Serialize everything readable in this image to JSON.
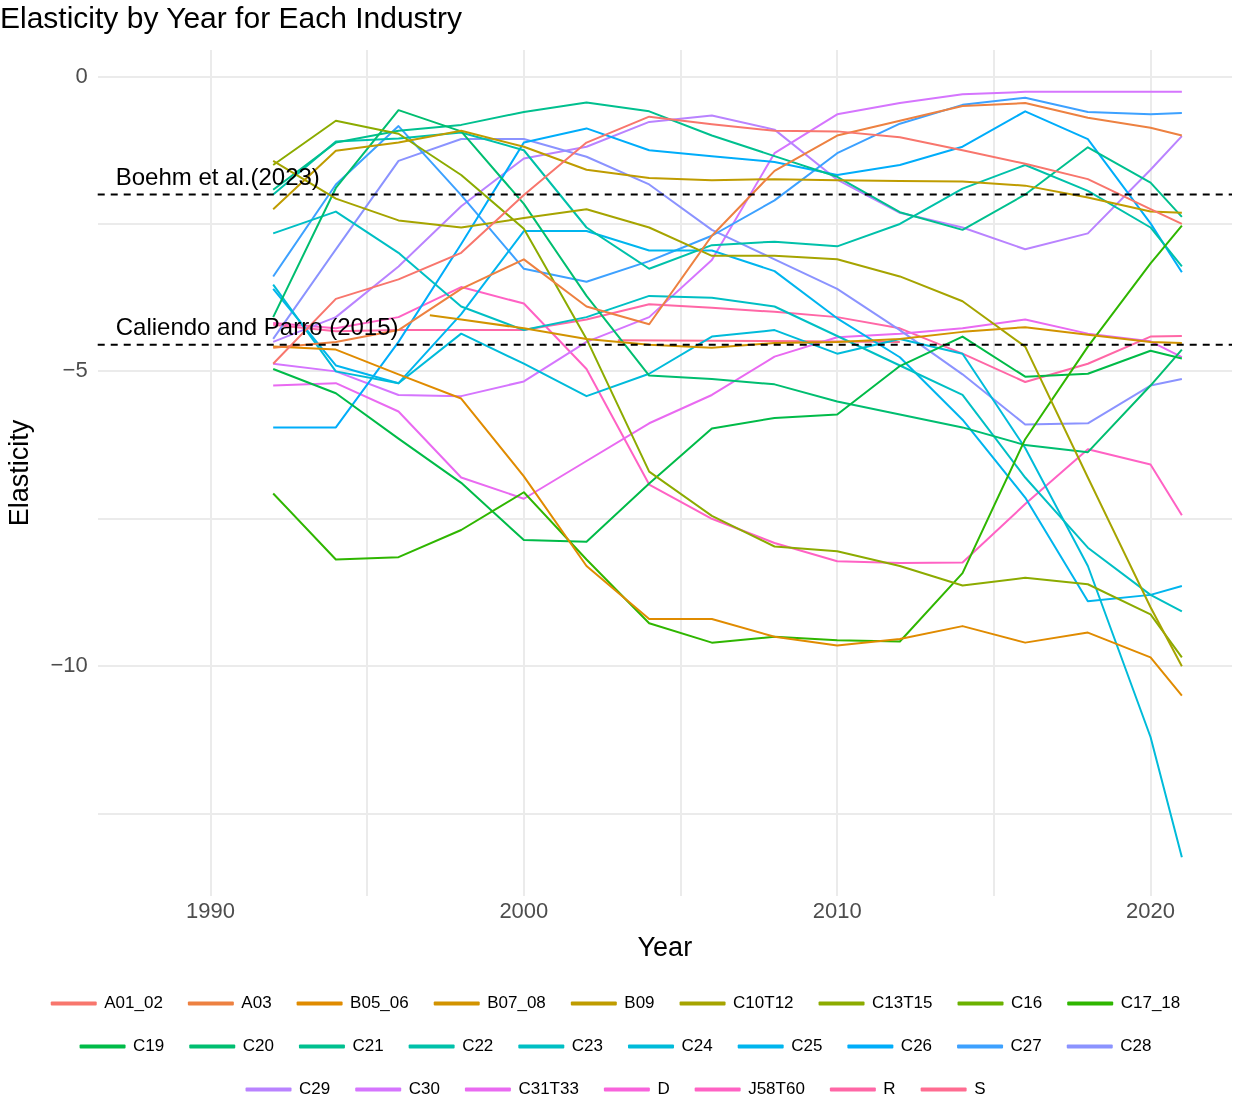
{
  "chart_data": {
    "type": "line",
    "title": "Elasticity by Year for Each Industry",
    "xlabel": "Year",
    "ylabel": "Elasticity",
    "legend": "bottom",
    "grid": true,
    "marker": "none",
    "line_style": "solid",
    "xlim": [
      1986.4,
      2022.6
    ],
    "xticks": [
      1990,
      {
        "value": 1995,
        "label": null
      },
      2000,
      {
        "value": 2005,
        "label": null
      },
      2010,
      {
        "value": 2015,
        "label": null
      },
      2020
    ],
    "ylim": [
      -13.9,
      0.45
    ],
    "yticks": [
      {
        "value": -12.5,
        "label": null
      },
      {
        "value": -10,
        "label": "−10"
      },
      {
        "value": -7.5,
        "label": null
      },
      {
        "value": -5,
        "label": "−5"
      },
      {
        "value": -2.5,
        "label": null
      },
      0
    ],
    "x": [
      1992,
      1994,
      1996,
      1998,
      2000,
      2002,
      2004,
      2006,
      2008,
      2010,
      2012,
      2014,
      2016,
      2018,
      2020,
      2021
    ],
    "ref_lines": [
      {
        "axis": "y",
        "value": -2,
        "label": "Boehm et al.(2023)",
        "color": "#000000",
        "line_style": "dashed"
      },
      {
        "axis": "y",
        "value": -4.55,
        "label": "Caliendo and Parro (2015)",
        "color": "#000000",
        "line_style": "dashed"
      }
    ],
    "series": [
      {
        "name": "A01_02",
        "color": "#f8766d",
        "values": [
          -4.87,
          -3.77,
          -3.44,
          -2.99,
          -2.01,
          -1.12,
          -0.68,
          -0.81,
          -0.92,
          -0.93,
          -1.03,
          -1.25,
          -1.48,
          -1.74,
          -2.25,
          -2.5
        ]
      },
      {
        "name": "A03",
        "color": "#ed8141",
        "values": [
          -4.6,
          -4.5,
          -4.3,
          -3.6,
          -3.1,
          -3.9,
          -4.2,
          -2.7,
          -1.6,
          -1.0,
          -0.75,
          -0.5,
          -0.45,
          -0.7,
          -0.87,
          -1.0
        ]
      },
      {
        "name": "B05_06",
        "color": "#e08b00",
        "values": [
          -4.58,
          -4.63,
          -5.05,
          -5.46,
          -6.78,
          -8.3,
          -9.2,
          -9.2,
          -9.5,
          -9.65,
          -9.54,
          -9.32,
          -9.6,
          -9.43,
          -9.85,
          -10.5
        ]
      },
      {
        "name": "B07_08",
        "color": "#d29300",
        "x": [
          1997,
          1998,
          2000,
          2002,
          2004,
          2006,
          2008,
          2010,
          2012,
          2014,
          2016,
          2018,
          2020,
          2021
        ],
        "values": [
          -4.05,
          -4.12,
          -4.27,
          -4.45,
          -4.55,
          -4.6,
          -4.52,
          -4.5,
          -4.45,
          -4.33,
          -4.25,
          -4.38,
          -4.5,
          -4.52
        ]
      },
      {
        "name": "B09",
        "color": "#bf9c00",
        "values": [
          -2.25,
          -1.26,
          -1.12,
          -0.92,
          -1.19,
          -1.58,
          -1.72,
          -1.76,
          -1.74,
          -1.76,
          -1.77,
          -1.78,
          -1.85,
          -2.05,
          -2.29,
          -2.31
        ]
      },
      {
        "name": "C10T12",
        "color": "#a6a400",
        "values": [
          -1.43,
          -2.07,
          -2.44,
          -2.56,
          -2.4,
          -2.25,
          -2.56,
          -3.04,
          -3.04,
          -3.1,
          -3.39,
          -3.81,
          -4.58,
          -6.8,
          -9.0,
          -10.0
        ]
      },
      {
        "name": "C13T15",
        "color": "#8cab00",
        "values": [
          -1.5,
          -0.75,
          -0.97,
          -1.67,
          -2.58,
          -4.45,
          -6.7,
          -7.45,
          -7.97,
          -8.05,
          -8.3,
          -8.63,
          -8.5,
          -8.61,
          -9.12,
          -9.85
        ]
      },
      {
        "name": "C16",
        "color": "#6bb100",
        "values": [
          null,
          null,
          null,
          null,
          null,
          null,
          null,
          null,
          null,
          null,
          null,
          null,
          null,
          null,
          null,
          null
        ]
      },
      {
        "name": "C17_18",
        "color": "#2fb600",
        "values": [
          -7.07,
          -8.19,
          -8.15,
          -7.69,
          -7.05,
          -8.19,
          -9.27,
          -9.6,
          -9.5,
          -9.56,
          -9.58,
          -8.42,
          -6.15,
          -4.58,
          -3.17,
          -2.53
        ]
      },
      {
        "name": "C19",
        "color": "#00bb48",
        "values": [
          -4.96,
          -5.37,
          -6.14,
          -6.89,
          -7.86,
          -7.89,
          -6.9,
          -5.97,
          -5.79,
          -5.73,
          -4.91,
          -4.41,
          -5.09,
          -5.04,
          -4.65,
          -4.78
        ]
      },
      {
        "name": "C20",
        "color": "#00be70",
        "values": [
          -4.08,
          -1.89,
          -0.57,
          -0.93,
          -2.16,
          -3.72,
          -5.07,
          -5.13,
          -5.22,
          -5.51,
          -5.73,
          -5.95,
          -6.25,
          -6.37,
          -5.24,
          -4.63
        ]
      },
      {
        "name": "C21",
        "color": "#00c08f",
        "values": [
          -1.92,
          -1.12,
          -0.92,
          -0.82,
          -0.6,
          -0.44,
          -0.59,
          -1.0,
          -1.35,
          -1.7,
          -2.3,
          -2.6,
          -2.0,
          -1.2,
          -1.8,
          -2.38
        ]
      },
      {
        "name": "C22",
        "color": "#00c1aa",
        "values": [
          -2.0,
          -1.1,
          -1.05,
          -0.95,
          -1.25,
          -2.56,
          -3.26,
          -2.86,
          -2.8,
          -2.88,
          -2.5,
          -1.9,
          -1.5,
          -1.94,
          -2.56,
          -3.22
        ]
      },
      {
        "name": "C23",
        "color": "#00bfc4",
        "values": [
          -2.66,
          -2.29,
          -2.99,
          -3.9,
          -4.3,
          -4.08,
          -3.72,
          -3.75,
          -3.9,
          -4.4,
          -4.9,
          -5.4,
          -6.8,
          -7.99,
          -8.79,
          -9.07
        ]
      },
      {
        "name": "C24",
        "color": "#00bbda",
        "values": [
          -3.53,
          -5.0,
          -5.2,
          -4.36,
          -4.87,
          -5.42,
          -5.04,
          -4.41,
          -4.3,
          -4.7,
          -4.45,
          -4.7,
          -6.3,
          -8.3,
          -11.2,
          -13.24
        ]
      },
      {
        "name": "C25",
        "color": "#00b5ee",
        "values": [
          -3.6,
          -4.9,
          -5.2,
          -4.03,
          -2.62,
          -2.62,
          -2.95,
          -2.95,
          -3.3,
          -4.1,
          -4.76,
          -5.82,
          -7.14,
          -8.9,
          -8.79,
          -8.64
        ]
      },
      {
        "name": "C26",
        "color": "#00adfa",
        "values": [
          -5.95,
          -5.95,
          -4.5,
          -2.84,
          -1.12,
          -0.88,
          -1.25,
          -1.35,
          -1.45,
          -1.67,
          -1.5,
          -1.19,
          -0.59,
          -1.06,
          -2.49,
          -3.32
        ]
      },
      {
        "name": "C27",
        "color": "#3da1ff",
        "values": [
          -3.39,
          -1.83,
          -0.84,
          -2.01,
          -3.26,
          -3.48,
          -3.13,
          -2.7,
          -2.1,
          -1.3,
          -0.8,
          -0.48,
          -0.36,
          -0.6,
          -0.64,
          -0.62
        ]
      },
      {
        "name": "C28",
        "color": "#8b93ff",
        "values": [
          -4.45,
          -2.93,
          -1.43,
          -1.06,
          -1.06,
          -1.36,
          -1.83,
          -2.6,
          -3.1,
          -3.6,
          -4.3,
          -5.05,
          -5.9,
          -5.88,
          -5.24,
          -5.13
        ]
      },
      {
        "name": "C29",
        "color": "#b983ff",
        "values": [
          -4.5,
          -4.08,
          -3.22,
          -2.2,
          -1.39,
          -1.19,
          -0.77,
          -0.66,
          -0.9,
          -1.75,
          -2.31,
          -2.56,
          -2.93,
          -2.66,
          -1.58,
          -1.01
        ]
      },
      {
        "name": "C30",
        "color": "#d575fe",
        "values": [
          -4.87,
          -5.0,
          -5.4,
          -5.42,
          -5.17,
          -4.5,
          -4.08,
          -3.11,
          -1.3,
          -0.64,
          -0.45,
          -0.3,
          -0.26,
          -0.26,
          -0.26,
          -0.26
        ]
      },
      {
        "name": "C31T33",
        "color": "#e96af1",
        "values": [
          -5.24,
          -5.2,
          -5.68,
          -6.8,
          -7.16,
          -6.52,
          -5.88,
          -5.4,
          -4.75,
          -4.42,
          -4.36,
          -4.27,
          -4.12,
          -4.36,
          -4.49,
          -4.76
        ]
      },
      {
        "name": "D",
        "color": "#f863dc",
        "values": [
          null,
          null,
          null,
          null,
          null,
          null,
          null,
          null,
          null,
          null,
          null,
          null,
          null,
          null,
          null,
          null
        ]
      },
      {
        "name": "J58T60",
        "color": "#ff62c4",
        "values": [
          -4.18,
          -4.27,
          -4.08,
          -3.57,
          -3.85,
          -4.96,
          -6.92,
          -7.5,
          -7.91,
          -8.22,
          -8.25,
          -8.24,
          -7.25,
          -6.32,
          -6.58,
          -7.44
        ]
      },
      {
        "name": "R",
        "color": "#ff67a6",
        "values": [
          -4.21,
          -4.32,
          -4.3,
          -4.3,
          -4.3,
          -4.12,
          -3.86,
          -3.92,
          -3.99,
          -4.08,
          -4.27,
          -4.7,
          -5.18,
          -4.87,
          -4.41,
          -4.4
        ]
      },
      {
        "name": "S",
        "color": "#ff6c91",
        "x": [
          2003,
          2006,
          2009,
          2012
        ],
        "values": [
          -4.47,
          -4.48,
          -4.49,
          -4.5
        ]
      }
    ]
  }
}
